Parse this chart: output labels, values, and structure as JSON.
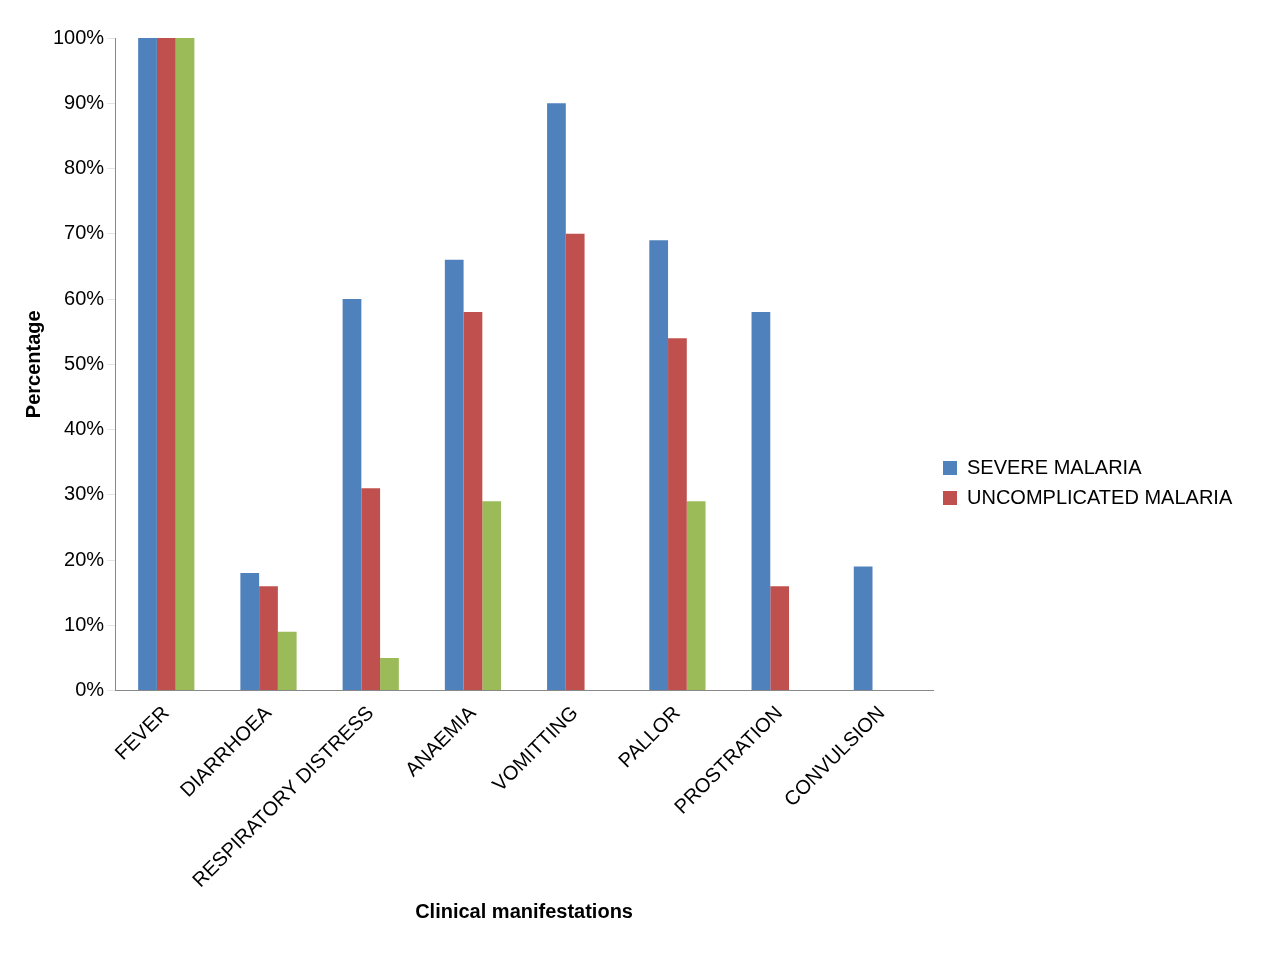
{
  "chart_data": {
    "type": "bar",
    "xlabel": "Clinical manifestations",
    "ylabel": "Percentage",
    "categories": [
      "FEVER",
      "DIARRHOEA",
      "RESPIRATORY DISTRESS",
      "ANAEMIA",
      "VOMITTING",
      "PALLOR",
      "PROSTRATION",
      "CONVULSION"
    ],
    "series": [
      {
        "name": "SEVERE MALARIA",
        "color": "#4f81bd",
        "values": [
          100,
          18,
          60,
          66,
          90,
          69,
          58,
          19
        ]
      },
      {
        "name": "UNCOMPLICATED MALARIA",
        "color": "#c0504d",
        "values": [
          100,
          16,
          31,
          58,
          70,
          54,
          16,
          0
        ]
      },
      {
        "color": "#9bbb59",
        "values": [
          100,
          9,
          5,
          29,
          0,
          29,
          0,
          0
        ]
      }
    ],
    "ylim": [
      0,
      100
    ],
    "yticks": [
      {
        "value": 0,
        "label": "0%"
      },
      {
        "value": 10,
        "label": "10%"
      },
      {
        "value": 20,
        "label": "20%"
      },
      {
        "value": 30,
        "label": "30%"
      },
      {
        "value": 40,
        "label": "40%"
      },
      {
        "value": 50,
        "label": "50%"
      },
      {
        "value": 60,
        "label": "60%"
      },
      {
        "value": 70,
        "label": "70%"
      },
      {
        "value": 80,
        "label": "80%"
      },
      {
        "value": 90,
        "label": "90%"
      },
      {
        "value": 100,
        "label": "100%"
      }
    ],
    "grid": false,
    "legend": "right"
  }
}
